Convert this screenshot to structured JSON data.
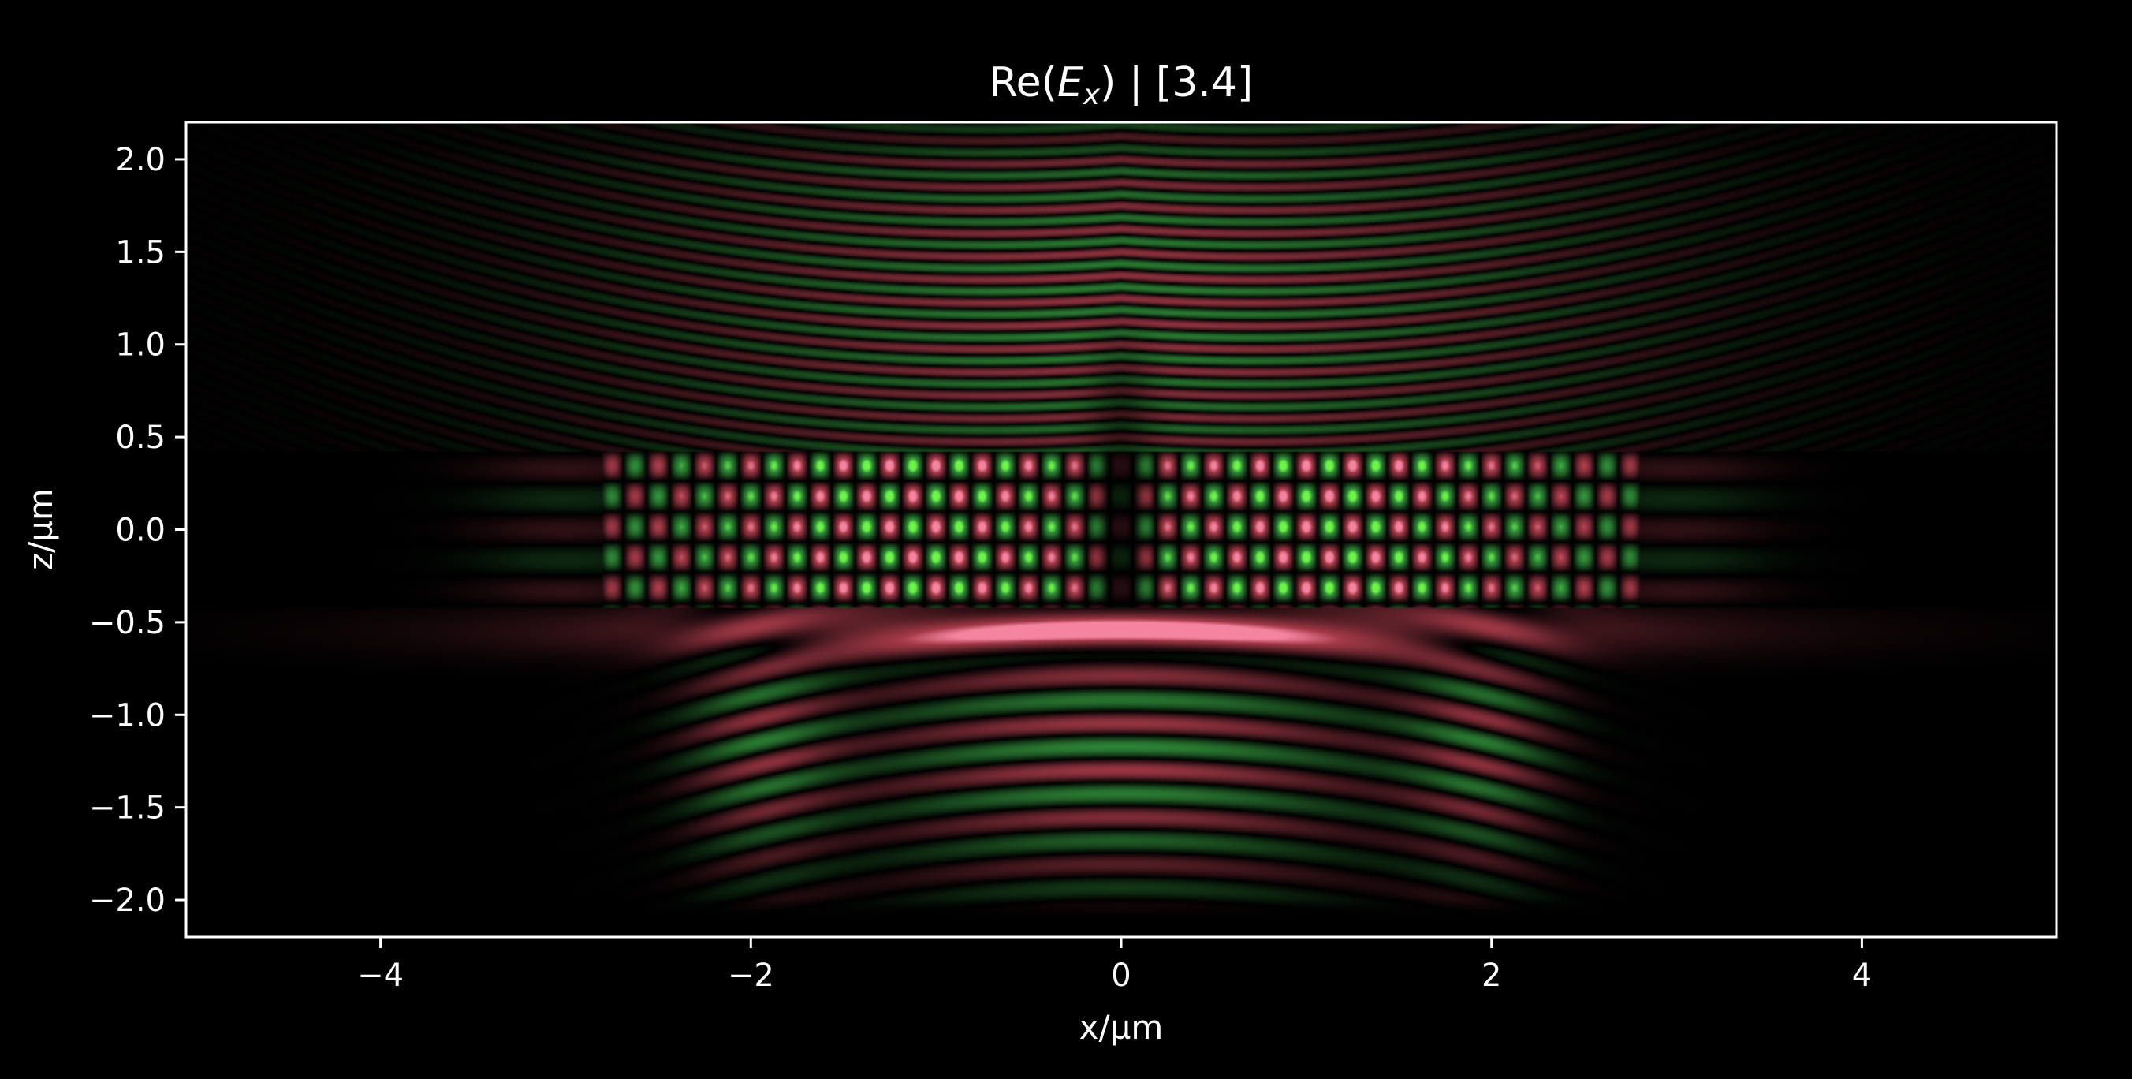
{
  "chart_data": {
    "type": "heatmap",
    "title_main": "Re(",
    "title_var": "E",
    "title_sub": "x",
    "title_tail": ") | [3.4]",
    "xlabel": "x/µm",
    "ylabel": "z/µm",
    "xlim": [
      -5.05,
      5.05
    ],
    "ylim": [
      -2.2,
      2.2
    ],
    "x_ticks": [
      {
        "value": -4,
        "label": "−4"
      },
      {
        "value": -2,
        "label": "−2"
      },
      {
        "value": 0,
        "label": "0"
      },
      {
        "value": 2,
        "label": "2"
      },
      {
        "value": 4,
        "label": "4"
      }
    ],
    "y_ticks": [
      {
        "value": 2.0,
        "label": "2.0"
      },
      {
        "value": 1.5,
        "label": "1.5"
      },
      {
        "value": 1.0,
        "label": "1.0"
      },
      {
        "value": 0.5,
        "label": "0.5"
      },
      {
        "value": 0.0,
        "label": "0.0"
      },
      {
        "value": -0.5,
        "label": "−0.5"
      },
      {
        "value": -1.0,
        "label": "−1.0"
      },
      {
        "value": -1.5,
        "label": "−1.5"
      },
      {
        "value": -2.0,
        "label": "−2.0"
      }
    ],
    "colormap": {
      "positive": "#c8485a",
      "negative": "#3fb84a",
      "peak_positive": "#f0a0c8",
      "peak_negative": "#7cf03c",
      "zero": "#000000"
    },
    "grid": false,
    "legend": "none",
    "slab": {
      "x_range": [
        -2.8,
        2.8
      ],
      "z_range": [
        -0.42,
        0.42
      ]
    }
  }
}
